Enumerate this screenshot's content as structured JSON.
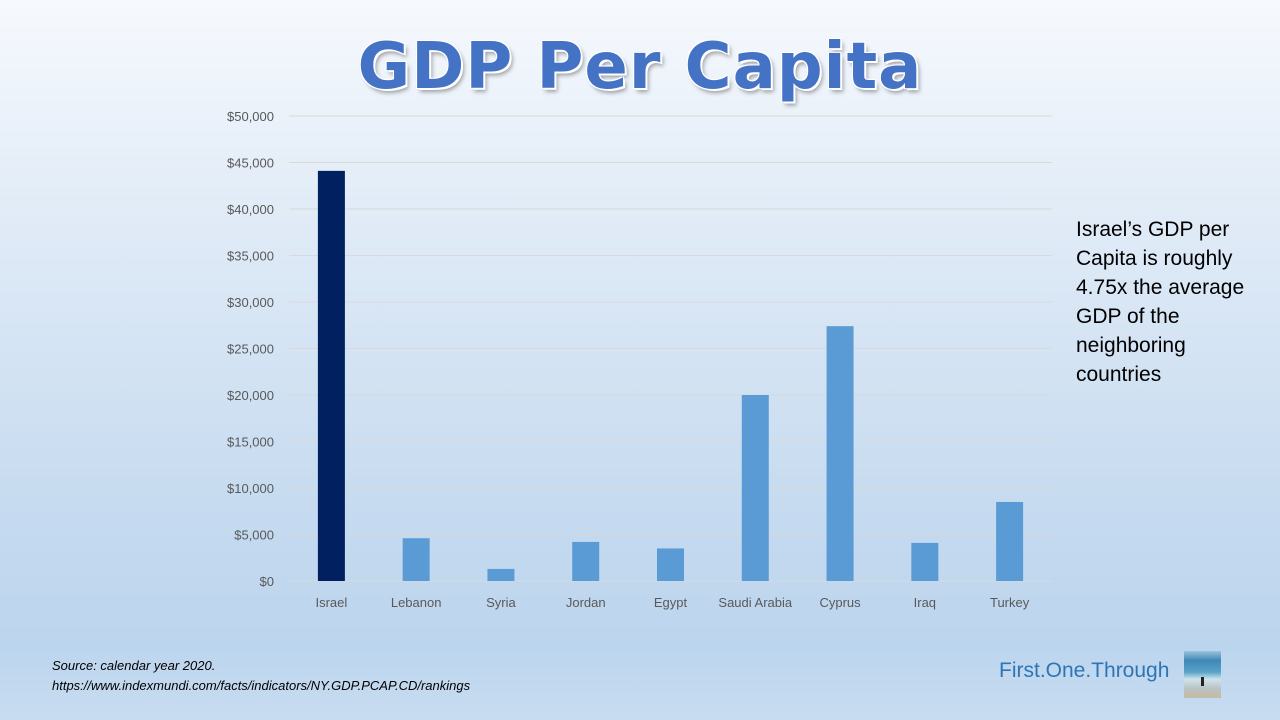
{
  "title": "GDP Per Capita",
  "note": "Israel’s GDP per Capita is roughly 4.75x the average GDP of the neighboring countries",
  "source_line1": "Source: calendar year 2020.",
  "source_line2": "https://www.indexmundi.com/facts/indicators/NY.GDP.PCAP.CD/rankings",
  "brand": "First.One.Through",
  "colors": {
    "highlight": "#002060",
    "bar": "#5b9bd5",
    "grid": "#d9d9d9",
    "title": "#4472c4"
  },
  "chart_data": {
    "type": "bar",
    "title": "GDP Per Capita",
    "xlabel": "",
    "ylabel": "",
    "categories": [
      "Israel",
      "Lebanon",
      "Syria",
      "Jordan",
      "Egypt",
      "Saudi Arabia",
      "Cyprus",
      "Iraq",
      "Turkey"
    ],
    "values": [
      44100,
      4600,
      1300,
      4200,
      3500,
      20000,
      27400,
      4100,
      8500
    ],
    "highlight": [
      "Israel"
    ],
    "ylim": [
      0,
      50000
    ],
    "yticks": [
      0,
      5000,
      10000,
      15000,
      20000,
      25000,
      30000,
      35000,
      40000,
      45000,
      50000
    ],
    "ytick_labels": [
      "$0",
      "$5,000",
      "$10,000",
      "$15,000",
      "$20,000",
      "$25,000",
      "$30,000",
      "$35,000",
      "$40,000",
      "$45,000",
      "$50,000"
    ],
    "grid": true,
    "legend": "none"
  }
}
